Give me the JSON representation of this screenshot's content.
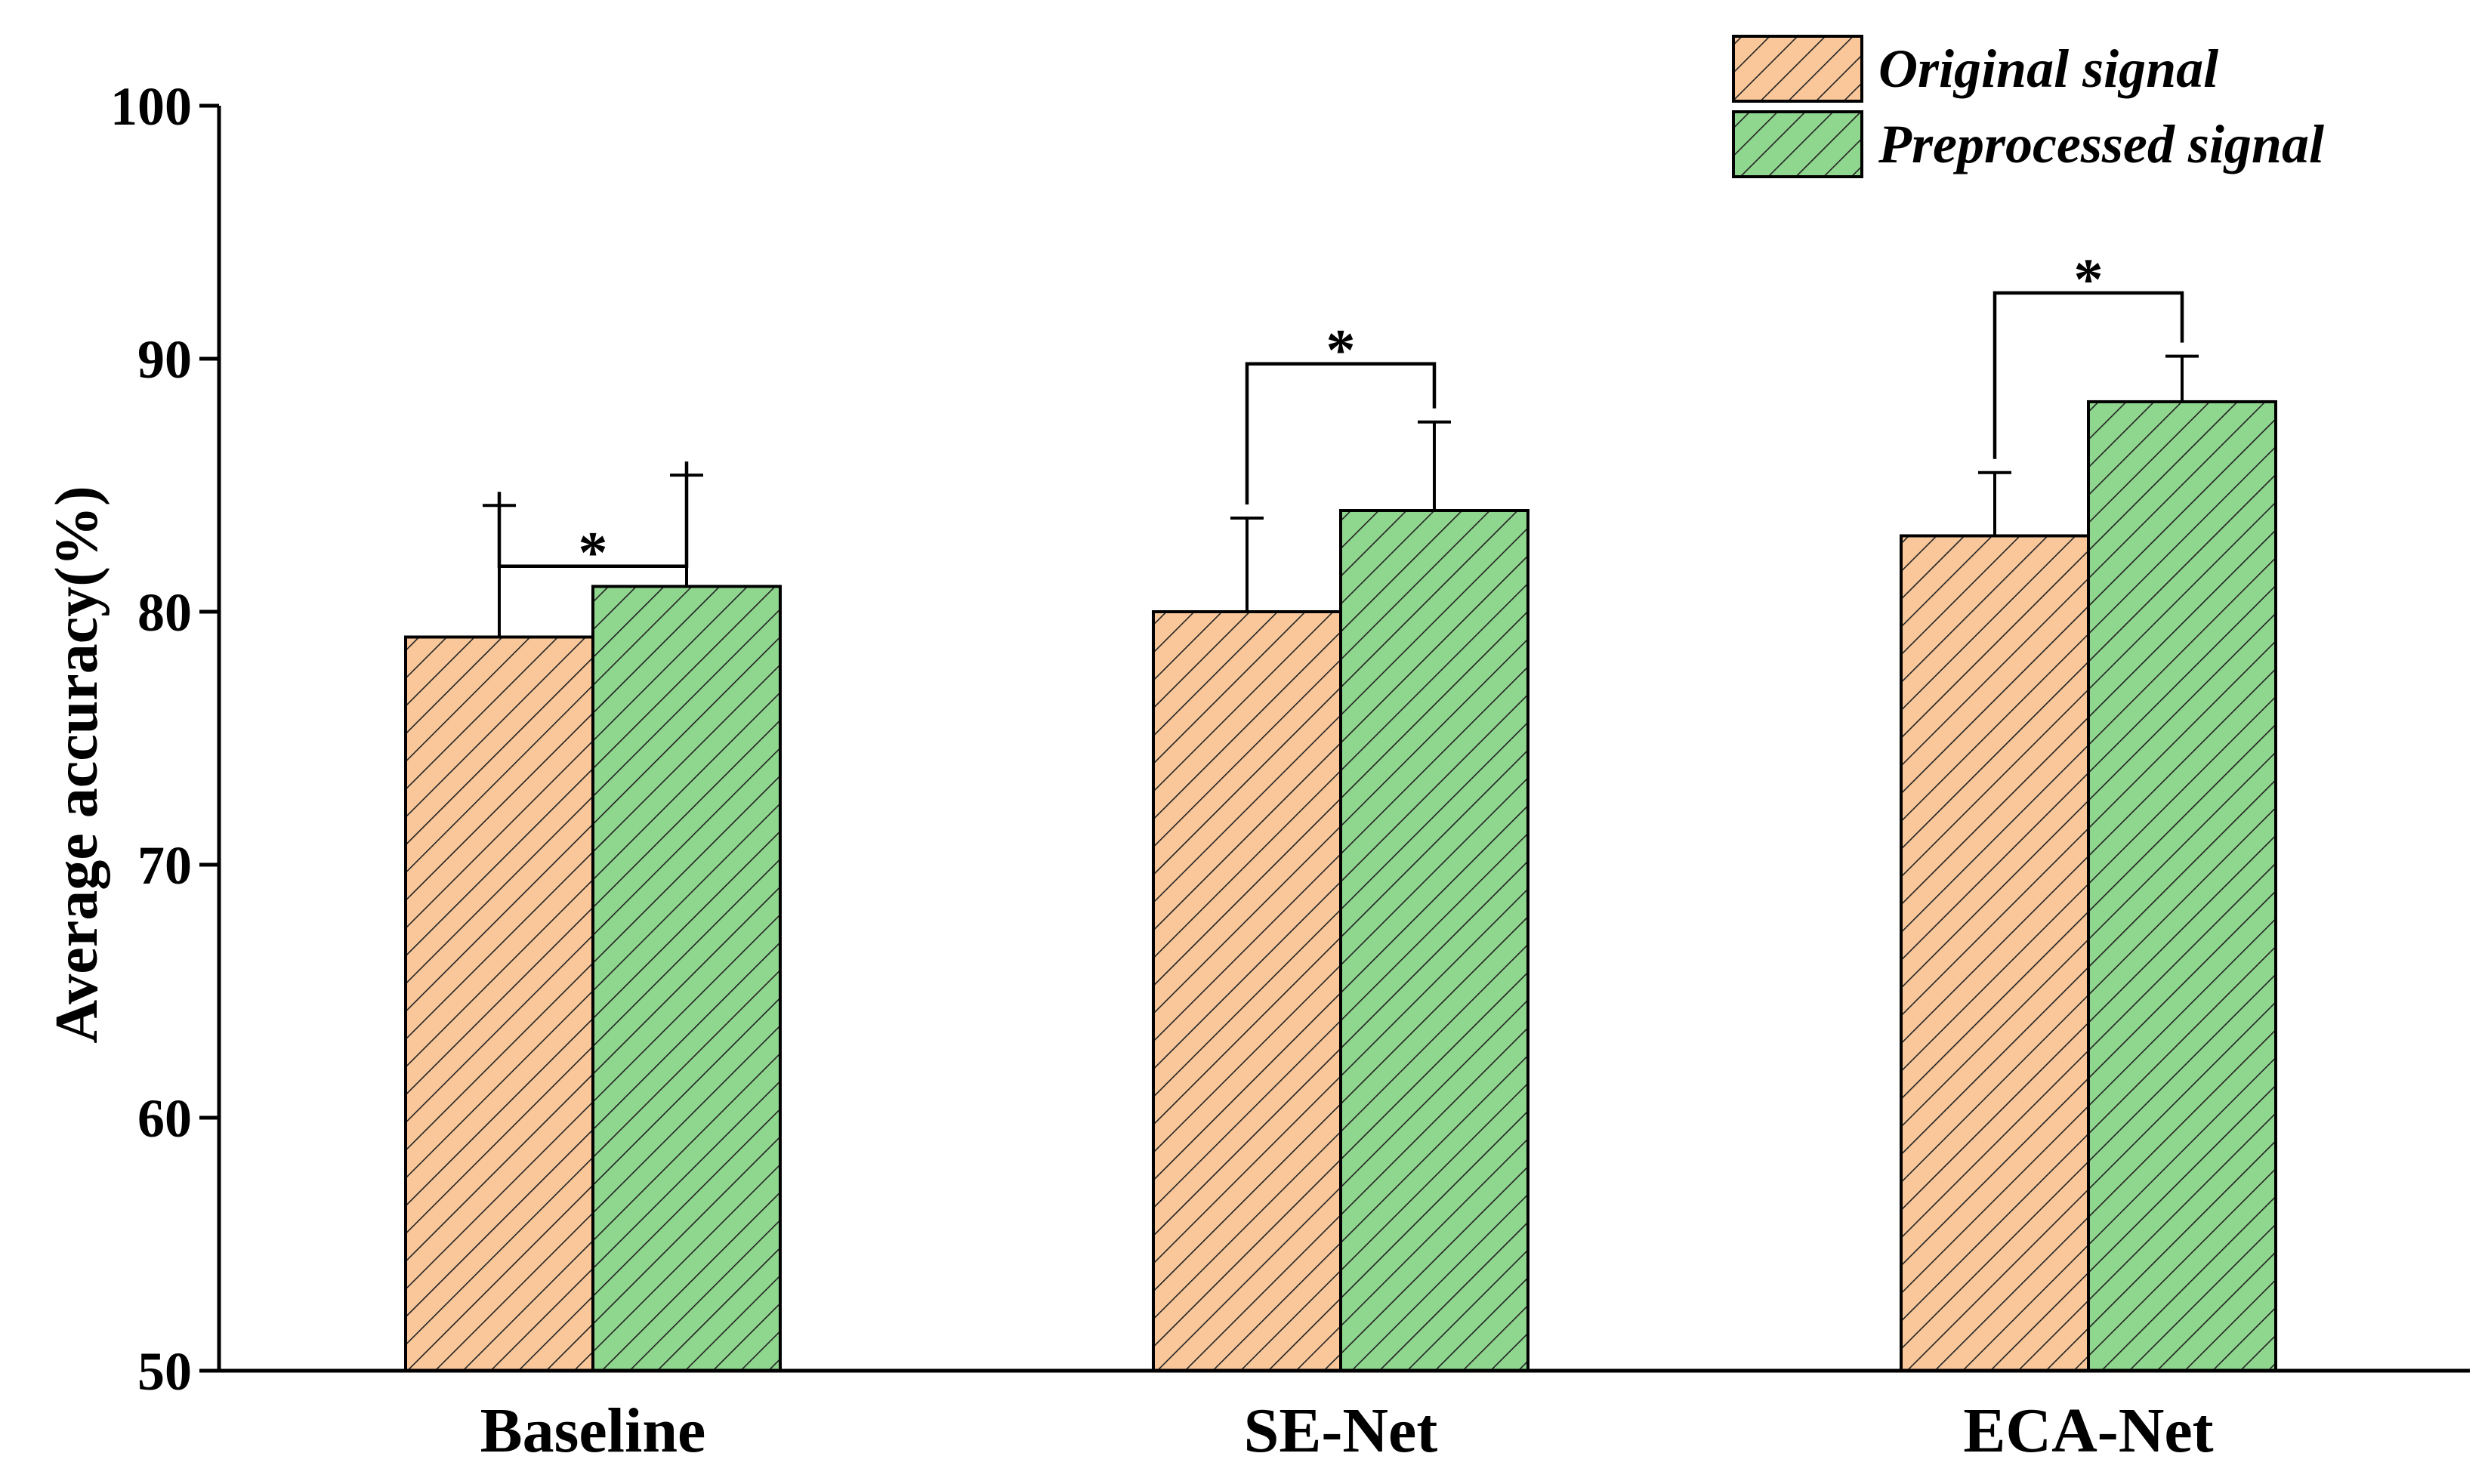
{
  "chart_data": {
    "type": "bar",
    "title": "",
    "xlabel": "",
    "ylabel": "Average accuracy(%)",
    "ylim": [
      50,
      100
    ],
    "yticks": [
      "50",
      "60",
      "70",
      "80",
      "90",
      "100"
    ],
    "grid": false,
    "legend_position": "top-right",
    "categories": [
      "Baseline",
      "SE-Net",
      "ECA-Net"
    ],
    "series": [
      {
        "name": "Original signal",
        "color": "#F9C79A",
        "pattern": "diagonal-hatch",
        "values": [
          79.0,
          80.0,
          83.0
        ],
        "errors": [
          5.2,
          3.7,
          2.5
        ]
      },
      {
        "name": "Preprocessed signal",
        "color": "#8FD68F",
        "pattern": "diagonal-hatch",
        "values": [
          81.0,
          84.0,
          88.3
        ],
        "errors": [
          4.4,
          3.5,
          1.8
        ]
      }
    ],
    "significance": [
      {
        "category": "Baseline",
        "label": "*",
        "bracket_y": 81.8
      },
      {
        "category": "SE-Net",
        "label": "*",
        "bracket_y": 89.8
      },
      {
        "category": "ECA-Net",
        "label": "*",
        "bracket_y": 92.6
      }
    ]
  }
}
